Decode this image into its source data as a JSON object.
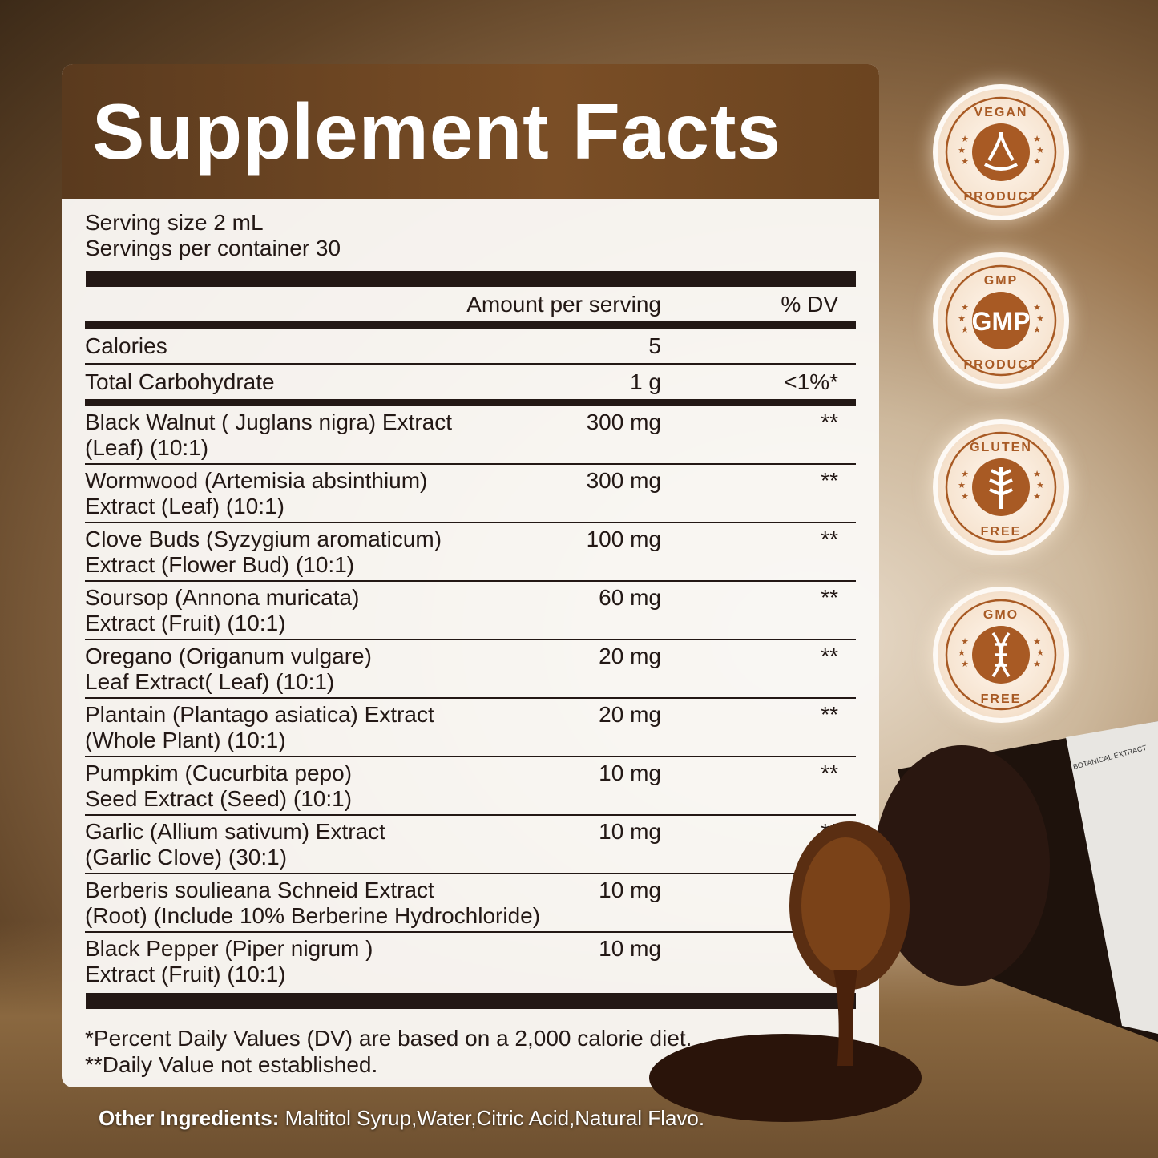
{
  "title": "Supplement Facts",
  "serving_size": "Serving size 2 mL",
  "servings_per_container": "Servings per container 30",
  "columns": {
    "amount": "Amount per serving",
    "dv": "% DV"
  },
  "nutrients": [
    {
      "name": "Calories",
      "amount": "5",
      "dv": ""
    },
    {
      "name": "Total Carbohydrate",
      "amount": "1 g",
      "dv": "<1%*"
    }
  ],
  "ingredients": [
    {
      "line1": "Black Walnut ( Juglans nigra) Extract",
      "line2": "(Leaf) (10:1)",
      "amount": "300 mg",
      "dv": "**"
    },
    {
      "line1": "Wormwood (Artemisia absinthium)",
      "line2": "Extract (Leaf) (10:1)",
      "amount": "300 mg",
      "dv": "**"
    },
    {
      "line1": "Clove Buds (Syzygium aromaticum)",
      "line2": "Extract (Flower Bud) (10:1)",
      "amount": "100 mg",
      "dv": "**"
    },
    {
      "line1": "Soursop (Annona muricata)",
      "line2": "Extract (Fruit) (10:1)",
      "amount": "60 mg",
      "dv": "**"
    },
    {
      "line1": "Oregano (Origanum vulgare)",
      "line2": "Leaf  Extract( Leaf) (10:1)",
      "amount": "20 mg",
      "dv": "**"
    },
    {
      "line1": "Plantain (Plantago asiatica) Extract",
      "line2": "(Whole Plant) (10:1)",
      "amount": "20 mg",
      "dv": "**"
    },
    {
      "line1": "Pumpkim (Cucurbita pepo)",
      "line2": "Seed Extract (Seed) (10:1)",
      "amount": "10 mg",
      "dv": "**"
    },
    {
      "line1": "Garlic (Allium sativum) Extract",
      "line2": "(Garlic Clove) (30:1)",
      "amount": "10 mg",
      "dv": "**"
    },
    {
      "line1": "Berberis soulieana Schneid Extract",
      "line2": "(Root) (Include 10% Berberine Hydrochloride)",
      "amount": "10 mg",
      "dv": ""
    },
    {
      "line1": "Black Pepper (Piper nigrum )",
      "line2": "Extract (Fruit) (10:1)",
      "amount": "10 mg",
      "dv": ""
    }
  ],
  "footnotes": [
    "*Percent Daily Values (DV) are based on a 2,000 calorie diet.",
    "**Daily Value not established."
  ],
  "other_ingredients": {
    "label": "Other Ingredients:",
    "value": " Maltitol Syrup,Water,Citric Acid,Natural Flavo."
  },
  "badges": [
    {
      "top": "VEGAN",
      "bottom": "PRODUCT",
      "icon": "leaf-hands-icon"
    },
    {
      "top": "GMP",
      "center": "GMP",
      "bottom": "PRODUCT",
      "icon": "gmp-icon"
    },
    {
      "top": "GLUTEN",
      "bottom": "FREE",
      "icon": "wheat-icon"
    },
    {
      "top": "GMO",
      "bottom": "FREE",
      "icon": "dna-icon"
    }
  ],
  "bottle_label": "BOTANICAL EXTRACT",
  "colors": {
    "header": "#6b4420",
    "badge": "#a85a24",
    "text": "#231815"
  }
}
